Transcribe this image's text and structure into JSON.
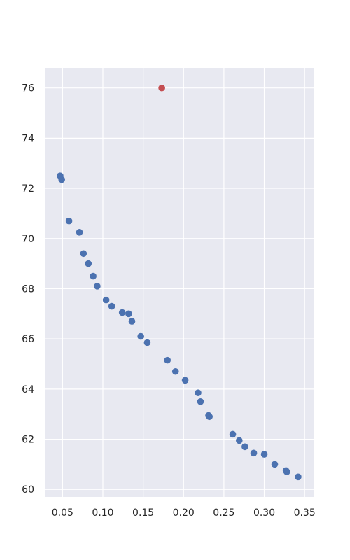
{
  "chart_data": {
    "type": "scatter",
    "title": "",
    "xlabel": "",
    "ylabel": "",
    "xlim": [
      0.028,
      0.362
    ],
    "ylim": [
      59.7,
      76.8
    ],
    "grid": true,
    "background_color": "#e8e9f1",
    "grid_color": "#ffffff",
    "x_ticks": [
      "0.05",
      "0.10",
      "0.15",
      "0.20",
      "0.25",
      "0.30",
      "0.35"
    ],
    "y_ticks": [
      "60",
      "62",
      "64",
      "66",
      "68",
      "70",
      "72",
      "74",
      "76"
    ],
    "series": [
      {
        "color": "#4c72b0",
        "points": [
          [
            0.047,
            72.5
          ],
          [
            0.049,
            72.35
          ],
          [
            0.058,
            70.7
          ],
          [
            0.071,
            70.25
          ],
          [
            0.076,
            69.4
          ],
          [
            0.082,
            69.0
          ],
          [
            0.088,
            68.5
          ],
          [
            0.093,
            68.1
          ],
          [
            0.104,
            67.55
          ],
          [
            0.111,
            67.3
          ],
          [
            0.124,
            67.05
          ],
          [
            0.132,
            67.0
          ],
          [
            0.136,
            66.7
          ],
          [
            0.147,
            66.1
          ],
          [
            0.155,
            65.85
          ],
          [
            0.18,
            65.15
          ],
          [
            0.19,
            64.7
          ],
          [
            0.202,
            64.35
          ],
          [
            0.218,
            63.85
          ],
          [
            0.221,
            63.5
          ],
          [
            0.231,
            62.95
          ],
          [
            0.232,
            62.9
          ],
          [
            0.261,
            62.2
          ],
          [
            0.269,
            61.95
          ],
          [
            0.276,
            61.7
          ],
          [
            0.287,
            61.45
          ],
          [
            0.3,
            61.4
          ],
          [
            0.313,
            61.0
          ],
          [
            0.327,
            60.75
          ],
          [
            0.328,
            60.7
          ],
          [
            0.342,
            60.5
          ]
        ]
      },
      {
        "color": "#c44e52",
        "points": [
          [
            0.173,
            76.0
          ]
        ]
      }
    ]
  }
}
